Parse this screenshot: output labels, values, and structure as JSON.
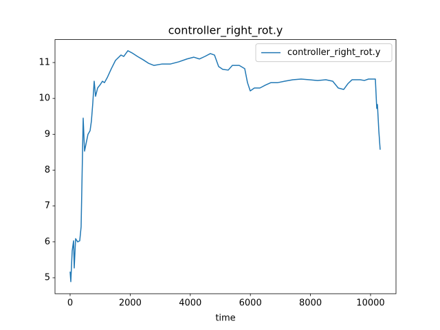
{
  "chart_data": {
    "type": "line",
    "title": "controller_right_rot.y",
    "xlabel": "time",
    "x": [
      0,
      23,
      69,
      115,
      137,
      183,
      252,
      320,
      366,
      435,
      481,
      526,
      595,
      664,
      709,
      755,
      801,
      847,
      915,
      1007,
      1076,
      1144,
      1236,
      1373,
      1510,
      1693,
      1785,
      1922,
      2059,
      2243,
      2426,
      2609,
      2792,
      3066,
      3341,
      3616,
      3890,
      4119,
      4302,
      4485,
      4668,
      4805,
      4943,
      5080,
      5263,
      5400,
      5629,
      5812,
      5904,
      5995,
      6133,
      6316,
      6499,
      6682,
      6911,
      7140,
      7414,
      7689,
      7963,
      8238,
      8513,
      8741,
      8924,
      9107,
      9245,
      9382,
      9657,
      9794,
      9931,
      10160,
      10206,
      10229,
      10275,
      10320
    ],
    "series": [
      {
        "name": "controller_right_rot.y",
        "color": "#1f77b4",
        "values": [
          5.17,
          4.89,
          5.75,
          6.03,
          5.27,
          6.09,
          6.0,
          6.03,
          6.42,
          9.45,
          8.53,
          8.72,
          9.0,
          9.1,
          9.37,
          9.87,
          10.48,
          10.06,
          10.29,
          10.39,
          10.48,
          10.44,
          10.58,
          10.83,
          11.06,
          11.21,
          11.17,
          11.33,
          11.27,
          11.17,
          11.08,
          10.98,
          10.92,
          10.96,
          10.96,
          11.02,
          11.1,
          11.15,
          11.1,
          11.17,
          11.25,
          11.21,
          10.89,
          10.81,
          10.79,
          10.92,
          10.92,
          10.83,
          10.44,
          10.21,
          10.29,
          10.29,
          10.37,
          10.44,
          10.44,
          10.48,
          10.52,
          10.54,
          10.52,
          10.5,
          10.52,
          10.48,
          10.29,
          10.25,
          10.41,
          10.52,
          10.52,
          10.5,
          10.54,
          10.54,
          9.72,
          9.83,
          9.1,
          8.57
        ]
      }
    ],
    "xlim": [
      -503,
      10847
    ],
    "xticks": [
      0,
      2000,
      4000,
      6000,
      8000,
      10000
    ],
    "ylim": [
      4.555,
      11.64
    ],
    "yticks": [
      5,
      6,
      7,
      8,
      9,
      10,
      11
    ],
    "legend": "upper right",
    "grid": false
  }
}
